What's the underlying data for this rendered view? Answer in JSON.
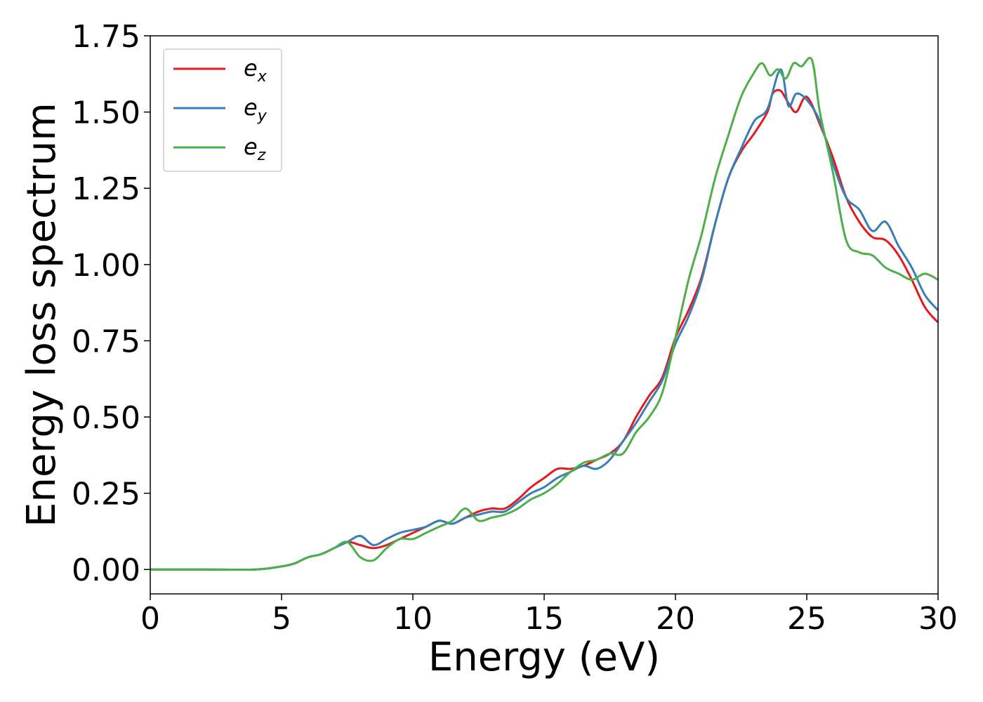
{
  "chart_data": {
    "type": "line",
    "xlabel": "Energy (eV)",
    "ylabel": "Energy loss spectrum",
    "xlim": [
      0,
      30
    ],
    "ylim": [
      -0.08,
      1.75
    ],
    "xticks": [
      0,
      5,
      10,
      15,
      20,
      25,
      30
    ],
    "xtick_labels": [
      "0",
      "5",
      "10",
      "15",
      "20",
      "25",
      "30"
    ],
    "yticks": [
      0.0,
      0.25,
      0.5,
      0.75,
      1.0,
      1.25,
      1.5,
      1.75
    ],
    "ytick_labels": [
      "0.00",
      "0.25",
      "0.50",
      "0.75",
      "1.00",
      "1.25",
      "1.50",
      "1.75"
    ],
    "grid": false,
    "legend_position": "top-left",
    "series": [
      {
        "name": "e",
        "subscript": "x",
        "color": "#e41a1c",
        "x": [
          0,
          2,
          4,
          5,
          5.5,
          6,
          6.5,
          7,
          7.5,
          8,
          8.5,
          9,
          9.5,
          10,
          10.5,
          11,
          11.5,
          12,
          12.5,
          13,
          13.5,
          14,
          14.5,
          15,
          15.5,
          16,
          16.5,
          17,
          17.5,
          18,
          18.5,
          19,
          19.5,
          20,
          20.5,
          21,
          21.5,
          22,
          22.5,
          23,
          23.5,
          23.7,
          24,
          24.3,
          24.6,
          25,
          25.5,
          26,
          26.5,
          27,
          27.5,
          28,
          28.5,
          29,
          29.5,
          30
        ],
        "y": [
          0,
          0,
          0,
          0.01,
          0.02,
          0.04,
          0.05,
          0.07,
          0.09,
          0.08,
          0.07,
          0.08,
          0.1,
          0.12,
          0.14,
          0.16,
          0.15,
          0.17,
          0.19,
          0.2,
          0.2,
          0.23,
          0.27,
          0.3,
          0.33,
          0.33,
          0.34,
          0.36,
          0.38,
          0.42,
          0.5,
          0.57,
          0.63,
          0.76,
          0.85,
          0.96,
          1.13,
          1.28,
          1.37,
          1.43,
          1.5,
          1.56,
          1.57,
          1.53,
          1.5,
          1.55,
          1.46,
          1.35,
          1.22,
          1.14,
          1.09,
          1.08,
          1.03,
          0.95,
          0.86,
          0.81
        ]
      },
      {
        "name": "e",
        "subscript": "y",
        "color": "#377eb8",
        "x": [
          0,
          2,
          4,
          5,
          5.5,
          6,
          6.5,
          7,
          7.5,
          8,
          8.5,
          9,
          9.5,
          10,
          10.5,
          11,
          11.5,
          12,
          12.5,
          13,
          13.5,
          14,
          14.5,
          15,
          15.5,
          16,
          16.5,
          17,
          17.5,
          18,
          18.5,
          19,
          19.5,
          20,
          20.5,
          21,
          21.5,
          22,
          22.5,
          23,
          23.5,
          24,
          24.3,
          24.6,
          25,
          25.5,
          26,
          26.5,
          27,
          27.5,
          28,
          28.5,
          29,
          29.5,
          30
        ],
        "y": [
          0,
          0,
          0,
          0.01,
          0.02,
          0.04,
          0.05,
          0.07,
          0.09,
          0.11,
          0.08,
          0.1,
          0.12,
          0.13,
          0.14,
          0.16,
          0.15,
          0.17,
          0.18,
          0.19,
          0.19,
          0.22,
          0.25,
          0.27,
          0.3,
          0.32,
          0.34,
          0.33,
          0.36,
          0.42,
          0.48,
          0.55,
          0.62,
          0.74,
          0.83,
          0.95,
          1.13,
          1.28,
          1.38,
          1.47,
          1.51,
          1.64,
          1.52,
          1.56,
          1.54,
          1.47,
          1.33,
          1.22,
          1.18,
          1.11,
          1.14,
          1.06,
          0.99,
          0.9,
          0.85
        ]
      },
      {
        "name": "e",
        "subscript": "z",
        "color": "#4daf4a",
        "x": [
          0,
          2,
          4,
          5,
          5.5,
          6,
          6.5,
          7,
          7.5,
          8,
          8.5,
          9,
          9.5,
          10,
          10.5,
          11,
          11.5,
          12,
          12.5,
          13,
          13.5,
          14,
          14.5,
          15,
          15.5,
          16,
          16.5,
          17,
          17.5,
          18,
          18.5,
          19,
          19.5,
          20,
          20.5,
          21,
          21.5,
          22,
          22.5,
          23,
          23.3,
          23.6,
          23.9,
          24.2,
          24.5,
          24.8,
          25.2,
          25.5,
          26,
          26.5,
          27,
          27.5,
          28,
          28.5,
          29,
          29.5,
          30
        ],
        "y": [
          0,
          0,
          0,
          0.01,
          0.02,
          0.04,
          0.05,
          0.07,
          0.09,
          0.04,
          0.03,
          0.07,
          0.1,
          0.1,
          0.12,
          0.14,
          0.16,
          0.2,
          0.16,
          0.17,
          0.18,
          0.2,
          0.23,
          0.25,
          0.28,
          0.32,
          0.35,
          0.36,
          0.38,
          0.38,
          0.45,
          0.5,
          0.58,
          0.76,
          0.95,
          1.1,
          1.28,
          1.42,
          1.55,
          1.63,
          1.66,
          1.62,
          1.64,
          1.61,
          1.66,
          1.65,
          1.67,
          1.5,
          1.3,
          1.08,
          1.04,
          1.03,
          0.99,
          0.97,
          0.95,
          0.97,
          0.95
        ]
      }
    ]
  }
}
